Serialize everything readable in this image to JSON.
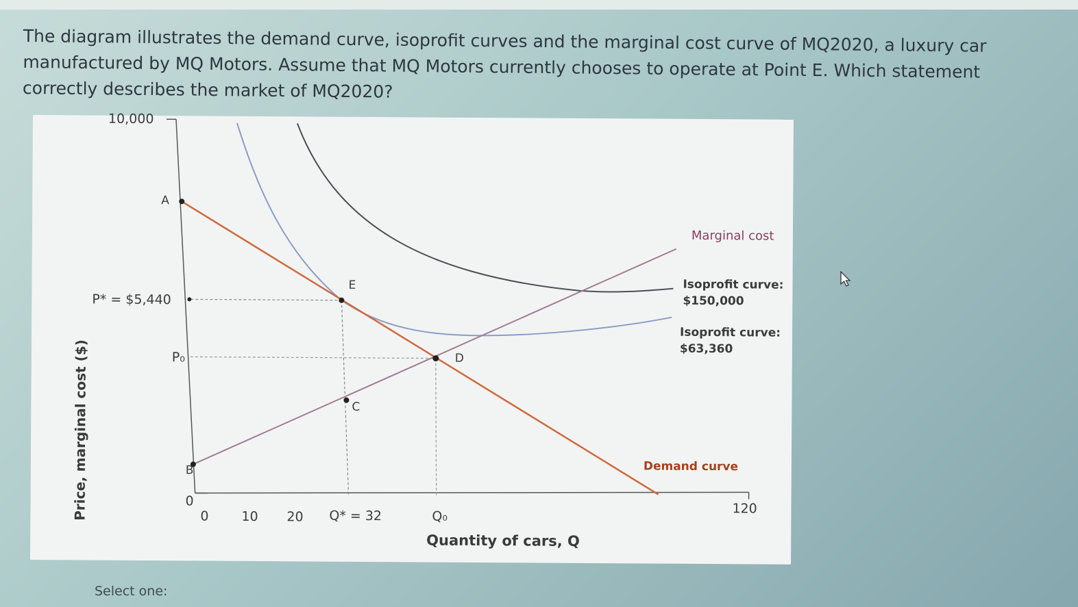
{
  "question": {
    "text": "The diagram illustrates the demand curve, isoprofit curves and the marginal cost curve of MQ2020, a luxury car manufactured by MQ Motors. Assume that MQ Motors currently chooses to operate at Point E. Which statement correctly describes the market of MQ2020?"
  },
  "figure": {
    "ylabel": "Price, marginal cost ($)",
    "xlabel": "Quantity of cars, Q",
    "y_ticks": {
      "top": "10,000",
      "zero": "0",
      "p_star": "P* = $5,440",
      "p0": "P₀"
    },
    "x_ticks": {
      "zero": "0",
      "ten": "10",
      "twenty": "20",
      "q_star": "Q* = 32",
      "q0": "Q₀",
      "max": "120"
    },
    "points": {
      "a": "A",
      "b": "B",
      "c": "C",
      "d": "D",
      "e": "E"
    },
    "curve_labels": {
      "marginal_cost": "Marginal cost",
      "isoprofit_high_1": "Isoprofit curve:",
      "isoprofit_high_2": "$150,000",
      "isoprofit_low_1": "Isoprofit curve:",
      "isoprofit_low_2": "$63,360",
      "demand": "Demand curve"
    },
    "colors": {
      "demand": "#d0683f",
      "marginal_cost": "#a07b95",
      "isoprofit_high": "#4a4f55",
      "isoprofit_low": "#8a9cc7",
      "axis": "#555555"
    }
  },
  "footer": {
    "select_one": "Select one:"
  },
  "chart_data": {
    "type": "line",
    "xlabel": "Quantity of cars, Q",
    "ylabel": "Price, marginal cost ($)",
    "xlim": [
      0,
      120
    ],
    "ylim": [
      0,
      10000
    ],
    "series": [
      {
        "name": "Demand curve",
        "x": [
          0,
          32,
          51,
          100
        ],
        "y": [
          8000,
          5440,
          3900,
          0
        ]
      },
      {
        "name": "Marginal cost",
        "x": [
          0,
          32,
          51,
          103
        ],
        "y": [
          1000,
          2500,
          3900,
          7500
        ]
      },
      {
        "name": "Isoprofit curve: $63,360",
        "x": [
          7,
          15,
          24,
          32,
          45,
          60,
          76,
          100
        ],
        "y": [
          10000,
          7700,
          6100,
          5440,
          4500,
          4300,
          4300,
          4500
        ]
      },
      {
        "name": "Isoprofit curve: $150,000",
        "x": [
          20,
          30,
          40,
          55,
          70,
          82,
          100
        ],
        "y": [
          10000,
          8400,
          7000,
          5750,
          5200,
          5080,
          5120
        ]
      }
    ],
    "points": [
      {
        "label": "A",
        "x": 0,
        "y": 8000
      },
      {
        "label": "B",
        "x": 0,
        "y": 1000
      },
      {
        "label": "C",
        "x": 32,
        "y": 2500
      },
      {
        "label": "D",
        "x": 51,
        "y": 3900
      },
      {
        "label": "E",
        "x": 32,
        "y": 5440
      }
    ]
  }
}
